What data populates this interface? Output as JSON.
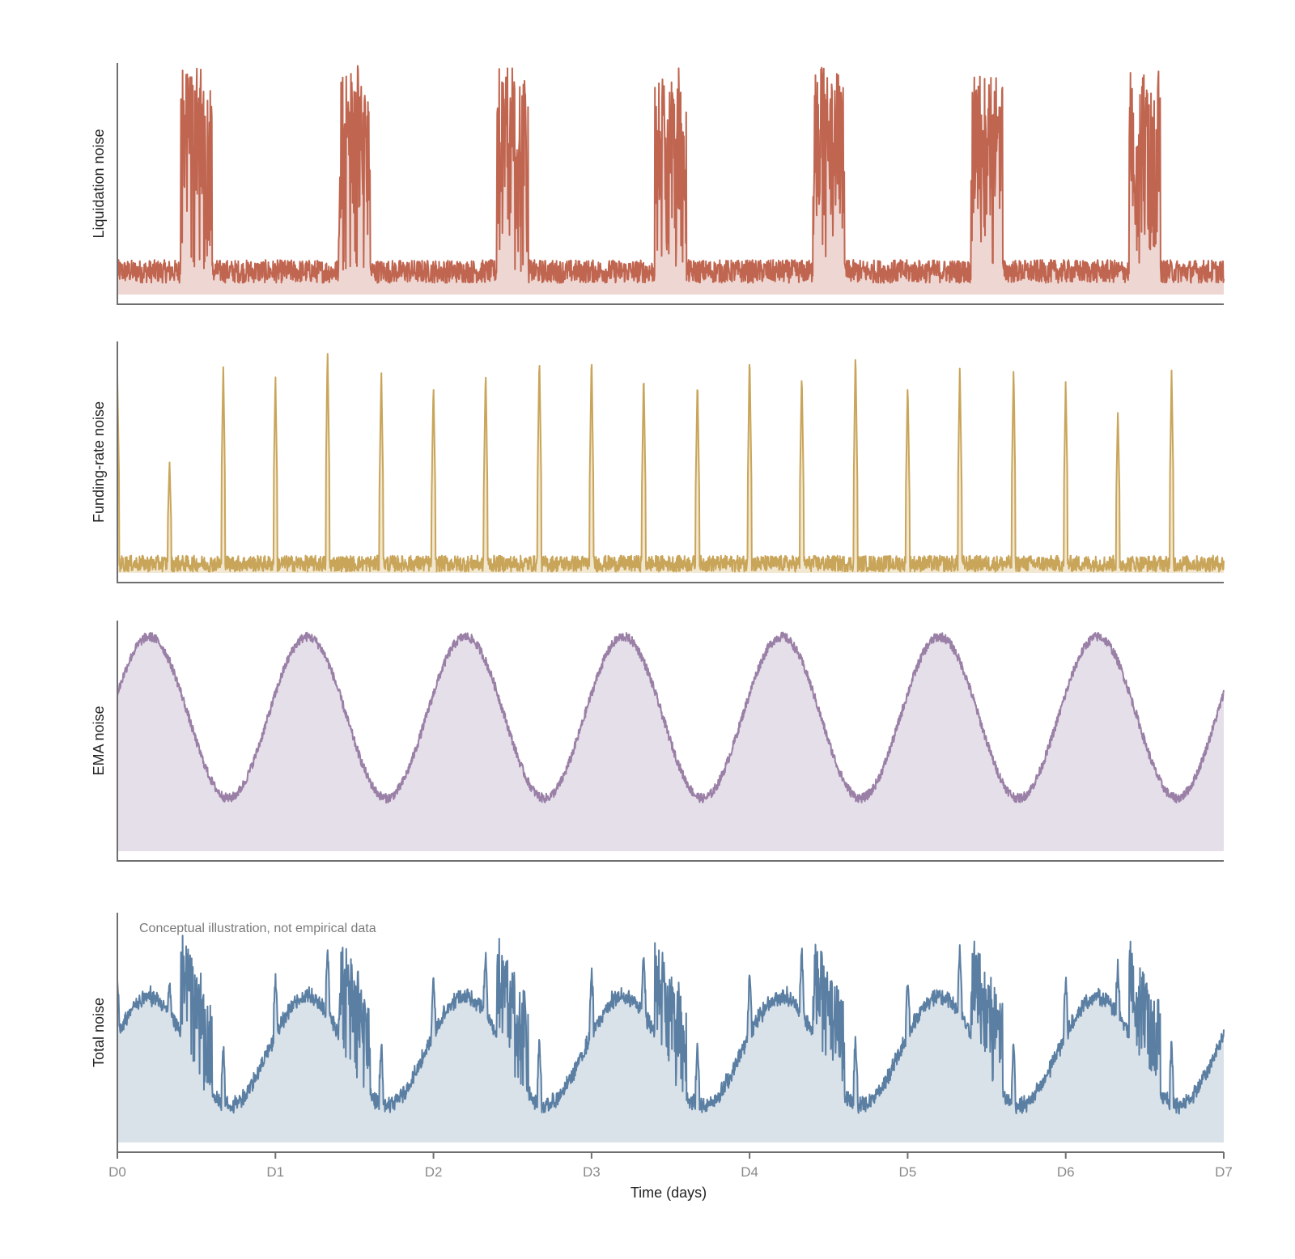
{
  "chart_data": {
    "type": "line",
    "xlabel": "Time (days)",
    "x_ticks": [
      "D0",
      "D1",
      "D2",
      "D3",
      "D4",
      "D5",
      "D6",
      "D7"
    ],
    "xlim": [
      0,
      7
    ],
    "annotation": "Conceptual illustration, not empirical data",
    "grid": false,
    "panels": [
      {
        "ylabel": "Liquidation noise",
        "color": "#c0654f",
        "fill": "#eed7d3",
        "ylim": [
          0,
          1
        ],
        "baseline": 0.1,
        "baseline_noise": 0.05,
        "bursts": [
          {
            "start": 0.4,
            "end": 0.6,
            "peak": 0.98
          },
          {
            "start": 1.4,
            "end": 1.6,
            "peak": 0.99
          },
          {
            "start": 2.4,
            "end": 2.6,
            "peak": 0.98
          },
          {
            "start": 3.4,
            "end": 3.6,
            "peak": 0.98
          },
          {
            "start": 4.4,
            "end": 4.6,
            "peak": 0.99
          },
          {
            "start": 5.4,
            "end": 5.6,
            "peak": 0.96
          },
          {
            "start": 6.4,
            "end": 6.6,
            "peak": 0.97
          }
        ]
      },
      {
        "ylabel": "Funding-rate noise",
        "color": "#c9a55a",
        "fill": "#f2e8d1",
        "ylim": [
          0,
          1
        ],
        "baseline": 0.04,
        "baseline_noise": 0.035,
        "spike_days": [
          0.0,
          0.33,
          0.67,
          1.0,
          1.33,
          1.67,
          2.0,
          2.33,
          2.67,
          3.0,
          3.33,
          3.67,
          4.0,
          4.33,
          4.67,
          5.0,
          5.33,
          5.67,
          6.0,
          6.33,
          6.67
        ],
        "spike_heights": [
          0.85,
          0.48,
          0.9,
          0.86,
          0.97,
          0.89,
          0.82,
          0.88,
          0.94,
          0.95,
          0.87,
          0.84,
          0.95,
          0.87,
          0.96,
          0.82,
          0.91,
          0.89,
          0.84,
          0.7,
          0.88
        ]
      },
      {
        "ylabel": "EMA noise",
        "color": "#9a7fa6",
        "fill": "#e5dfea",
        "ylim": [
          0,
          1
        ],
        "period_days": 1.0,
        "mean": 0.58,
        "amplitude": 0.35
      },
      {
        "ylabel": "Total noise",
        "color": "#5b7fa3",
        "fill": "#d9e1e9",
        "ylim": [
          0,
          1
        ]
      }
    ]
  }
}
